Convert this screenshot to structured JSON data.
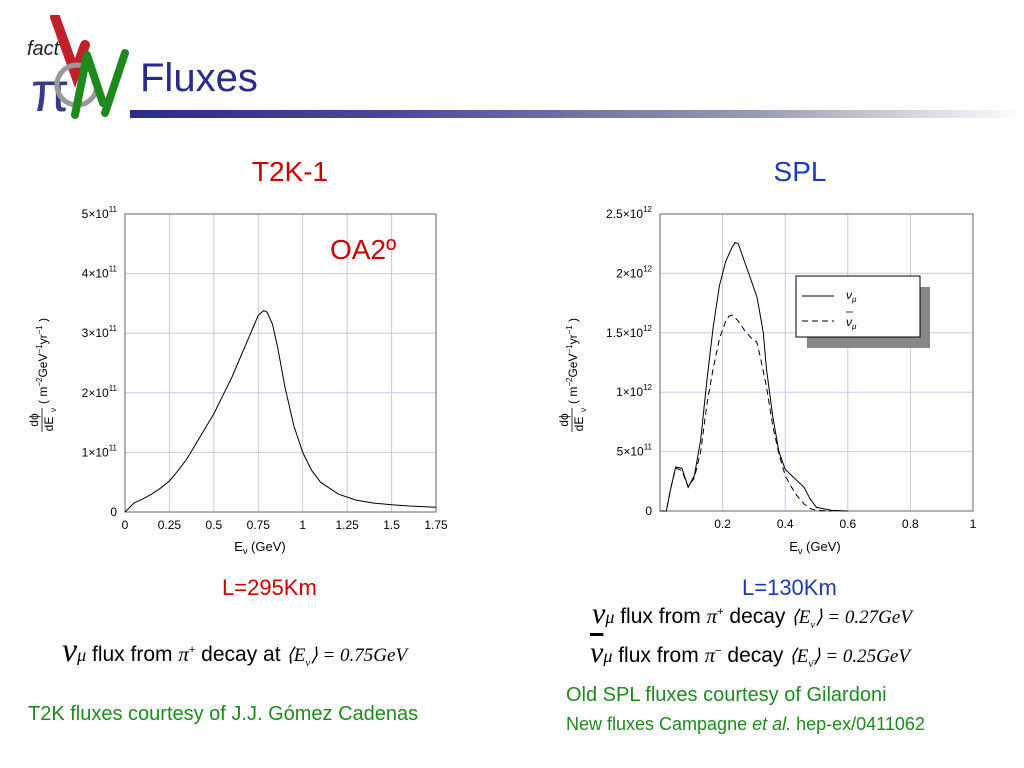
{
  "header": {
    "title": "Fluxes",
    "logo_text": "fact"
  },
  "t2k": {
    "heading": "T2K-1",
    "annotation": "OA2º",
    "baseline": "L=295Km",
    "ylabel_num": "dϕ",
    "ylabel_den": "dE",
    "ylabel_sub": "ν",
    "ylabel_units": "( m",
    "ylabel_units_tail": "GeV",
    "ylabel_yr": "yr",
    "xlabel": "E",
    "xlabel_sub": "ν",
    "xlabel_unit": " (GeV)",
    "yticks": [
      "0",
      "1×10",
      "2×10",
      "3×10",
      "4×10",
      "5×10"
    ],
    "ytick_exp": "11",
    "xticks": [
      "0",
      "0.25",
      "0.5",
      "0.75",
      "1",
      "1.25",
      "1.5",
      "1.75"
    ],
    "flux_symbol": "ν",
    "flux_sub": "μ",
    "flux_text": "flux from",
    "pi_symbol": "π",
    "pi_charge": "+",
    "decay_text": "decay at",
    "mean_energy": "⟨E",
    "mean_sub": "ν",
    "mean_value": "⟩ = 0.75GeV",
    "credit": "T2K fluxes courtesy of J.J. Gómez Cadenas"
  },
  "spl": {
    "heading": "SPL",
    "baseline": "L=130Km",
    "ylabel_num": "dϕ",
    "ylabel_den": "dE",
    "ylabel_sub": "ν",
    "ylabel_units": "( m",
    "ylabel_units_tail": "GeV",
    "ylabel_yr": "yr",
    "xlabel": "E",
    "xlabel_sub": "ν",
    "xlabel_unit": " (GeV)",
    "yticks": [
      "0",
      "5×10",
      "1×10",
      "1.5×10",
      "2×10",
      "2.5×10"
    ],
    "ytick_exps": [
      "",
      "11",
      "12",
      "12",
      "12",
      "12"
    ],
    "xticks": [
      "0.2",
      "0.4",
      "0.6",
      "0.8",
      "1"
    ],
    "legend": [
      {
        "label": "ν",
        "sub": "μ",
        "bar": false
      },
      {
        "label": "ν",
        "sub": "μ",
        "bar": true
      }
    ],
    "lines": [
      {
        "sym": "ν",
        "sub": "μ",
        "bar": false,
        "text": "flux from",
        "pi": "π",
        "charge": "+",
        "decay": "decay",
        "mean": "⟨E",
        "msub": "ν",
        "value": "⟩ = 0.27GeV"
      },
      {
        "sym": "ν",
        "sub": "μ",
        "bar": true,
        "text": "flux from",
        "pi": "π",
        "charge": "−",
        "decay": "decay",
        "mean": "⟨E",
        "msub": "ν̄",
        "value": "⟩ = 0.25GeV"
      }
    ],
    "credit1": "Old SPL fluxes courtesy of Gilardoni",
    "credit2_pre": "New fluxes Campagne ",
    "credit2_em": "et al.",
    "credit2_post": " hep-ex/0411062"
  },
  "chart_data": [
    {
      "type": "line",
      "title": "T2K-1",
      "xlabel": "Eν (GeV)",
      "ylabel": "dϕ/dEν ( m^-2 GeV^-1 yr^-1 )",
      "xlim": [
        0,
        1.75
      ],
      "ylim": [
        0,
        500000000000.0
      ],
      "grid": true,
      "series": [
        {
          "x": [
            0.0,
            0.05,
            0.1,
            0.15,
            0.2,
            0.25,
            0.3,
            0.35,
            0.4,
            0.45,
            0.5,
            0.55,
            0.6,
            0.65,
            0.7,
            0.75,
            0.78,
            0.8,
            0.83,
            0.86,
            0.9,
            0.95,
            1.0,
            1.05,
            1.1,
            1.2,
            1.3,
            1.4,
            1.5,
            1.6,
            1.75
          ],
          "y": [
            0.0,
            15000000000.0,
            22000000000.0,
            30000000000.0,
            40000000000.0,
            52000000000.0,
            70000000000.0,
            90000000000.0,
            115000000000.0,
            140000000000.0,
            165000000000.0,
            195000000000.0,
            225000000000.0,
            260000000000.0,
            295000000000.0,
            330000000000.0,
            338000000000.0,
            335000000000.0,
            315000000000.0,
            275000000000.0,
            210000000000.0,
            145000000000.0,
            100000000000.0,
            70000000000.0,
            50000000000.0,
            30000000000.0,
            20000000000.0,
            15000000000.0,
            12000000000.0,
            10000000000.0,
            8000000000.0
          ]
        }
      ]
    },
    {
      "type": "line",
      "title": "SPL",
      "xlabel": "Eν (GeV)",
      "ylabel": "dϕ/dEν ( m^-2 GeV^-1 yr^-1 )",
      "xlim": [
        0,
        1
      ],
      "ylim": [
        0,
        2500000000000.0
      ],
      "grid": true,
      "legend": "top-right",
      "series": [
        {
          "name": "νμ",
          "dash": false,
          "x": [
            0.0,
            0.02,
            0.035,
            0.05,
            0.07,
            0.09,
            0.11,
            0.13,
            0.15,
            0.17,
            0.19,
            0.21,
            0.23,
            0.24,
            0.25,
            0.27,
            0.29,
            0.31,
            0.32,
            0.33,
            0.34,
            0.36,
            0.38,
            0.4,
            0.42,
            0.44,
            0.46,
            0.48,
            0.5,
            0.55,
            0.6
          ],
          "y": [
            0.0,
            0.0,
            200000000000.0,
            370000000000.0,
            360000000000.0,
            200000000000.0,
            300000000000.0,
            600000000000.0,
            1100000000000.0,
            1550000000000.0,
            1900000000000.0,
            2100000000000.0,
            2220000000000.0,
            2260000000000.0,
            2250000000000.0,
            2100000000000.0,
            1950000000000.0,
            1800000000000.0,
            1650000000000.0,
            1500000000000.0,
            1200000000000.0,
            800000000000.0,
            500000000000.0,
            350000000000.0,
            300000000000.0,
            250000000000.0,
            200000000000.0,
            100000000000.0,
            30000000000.0,
            5000000000.0,
            0.0
          ]
        },
        {
          "name": "ν̄μ",
          "dash": true,
          "x": [
            0.0,
            0.02,
            0.035,
            0.05,
            0.07,
            0.09,
            0.11,
            0.13,
            0.15,
            0.17,
            0.19,
            0.21,
            0.22,
            0.23,
            0.25,
            0.27,
            0.29,
            0.31,
            0.32,
            0.34,
            0.36,
            0.38,
            0.4,
            0.42,
            0.44,
            0.46,
            0.48,
            0.5,
            0.55
          ],
          "y": [
            0.0,
            0.0,
            200000000000.0,
            360000000000.0,
            340000000000.0,
            200000000000.0,
            280000000000.0,
            500000000000.0,
            900000000000.0,
            1200000000000.0,
            1450000000000.0,
            1600000000000.0,
            1640000000000.0,
            1650000000000.0,
            1600000000000.0,
            1520000000000.0,
            1460000000000.0,
            1420000000000.0,
            1300000000000.0,
            1050000000000.0,
            720000000000.0,
            480000000000.0,
            300000000000.0,
            200000000000.0,
            120000000000.0,
            60000000000.0,
            20000000000.0,
            5000000000.0,
            0.0
          ]
        }
      ]
    }
  ]
}
